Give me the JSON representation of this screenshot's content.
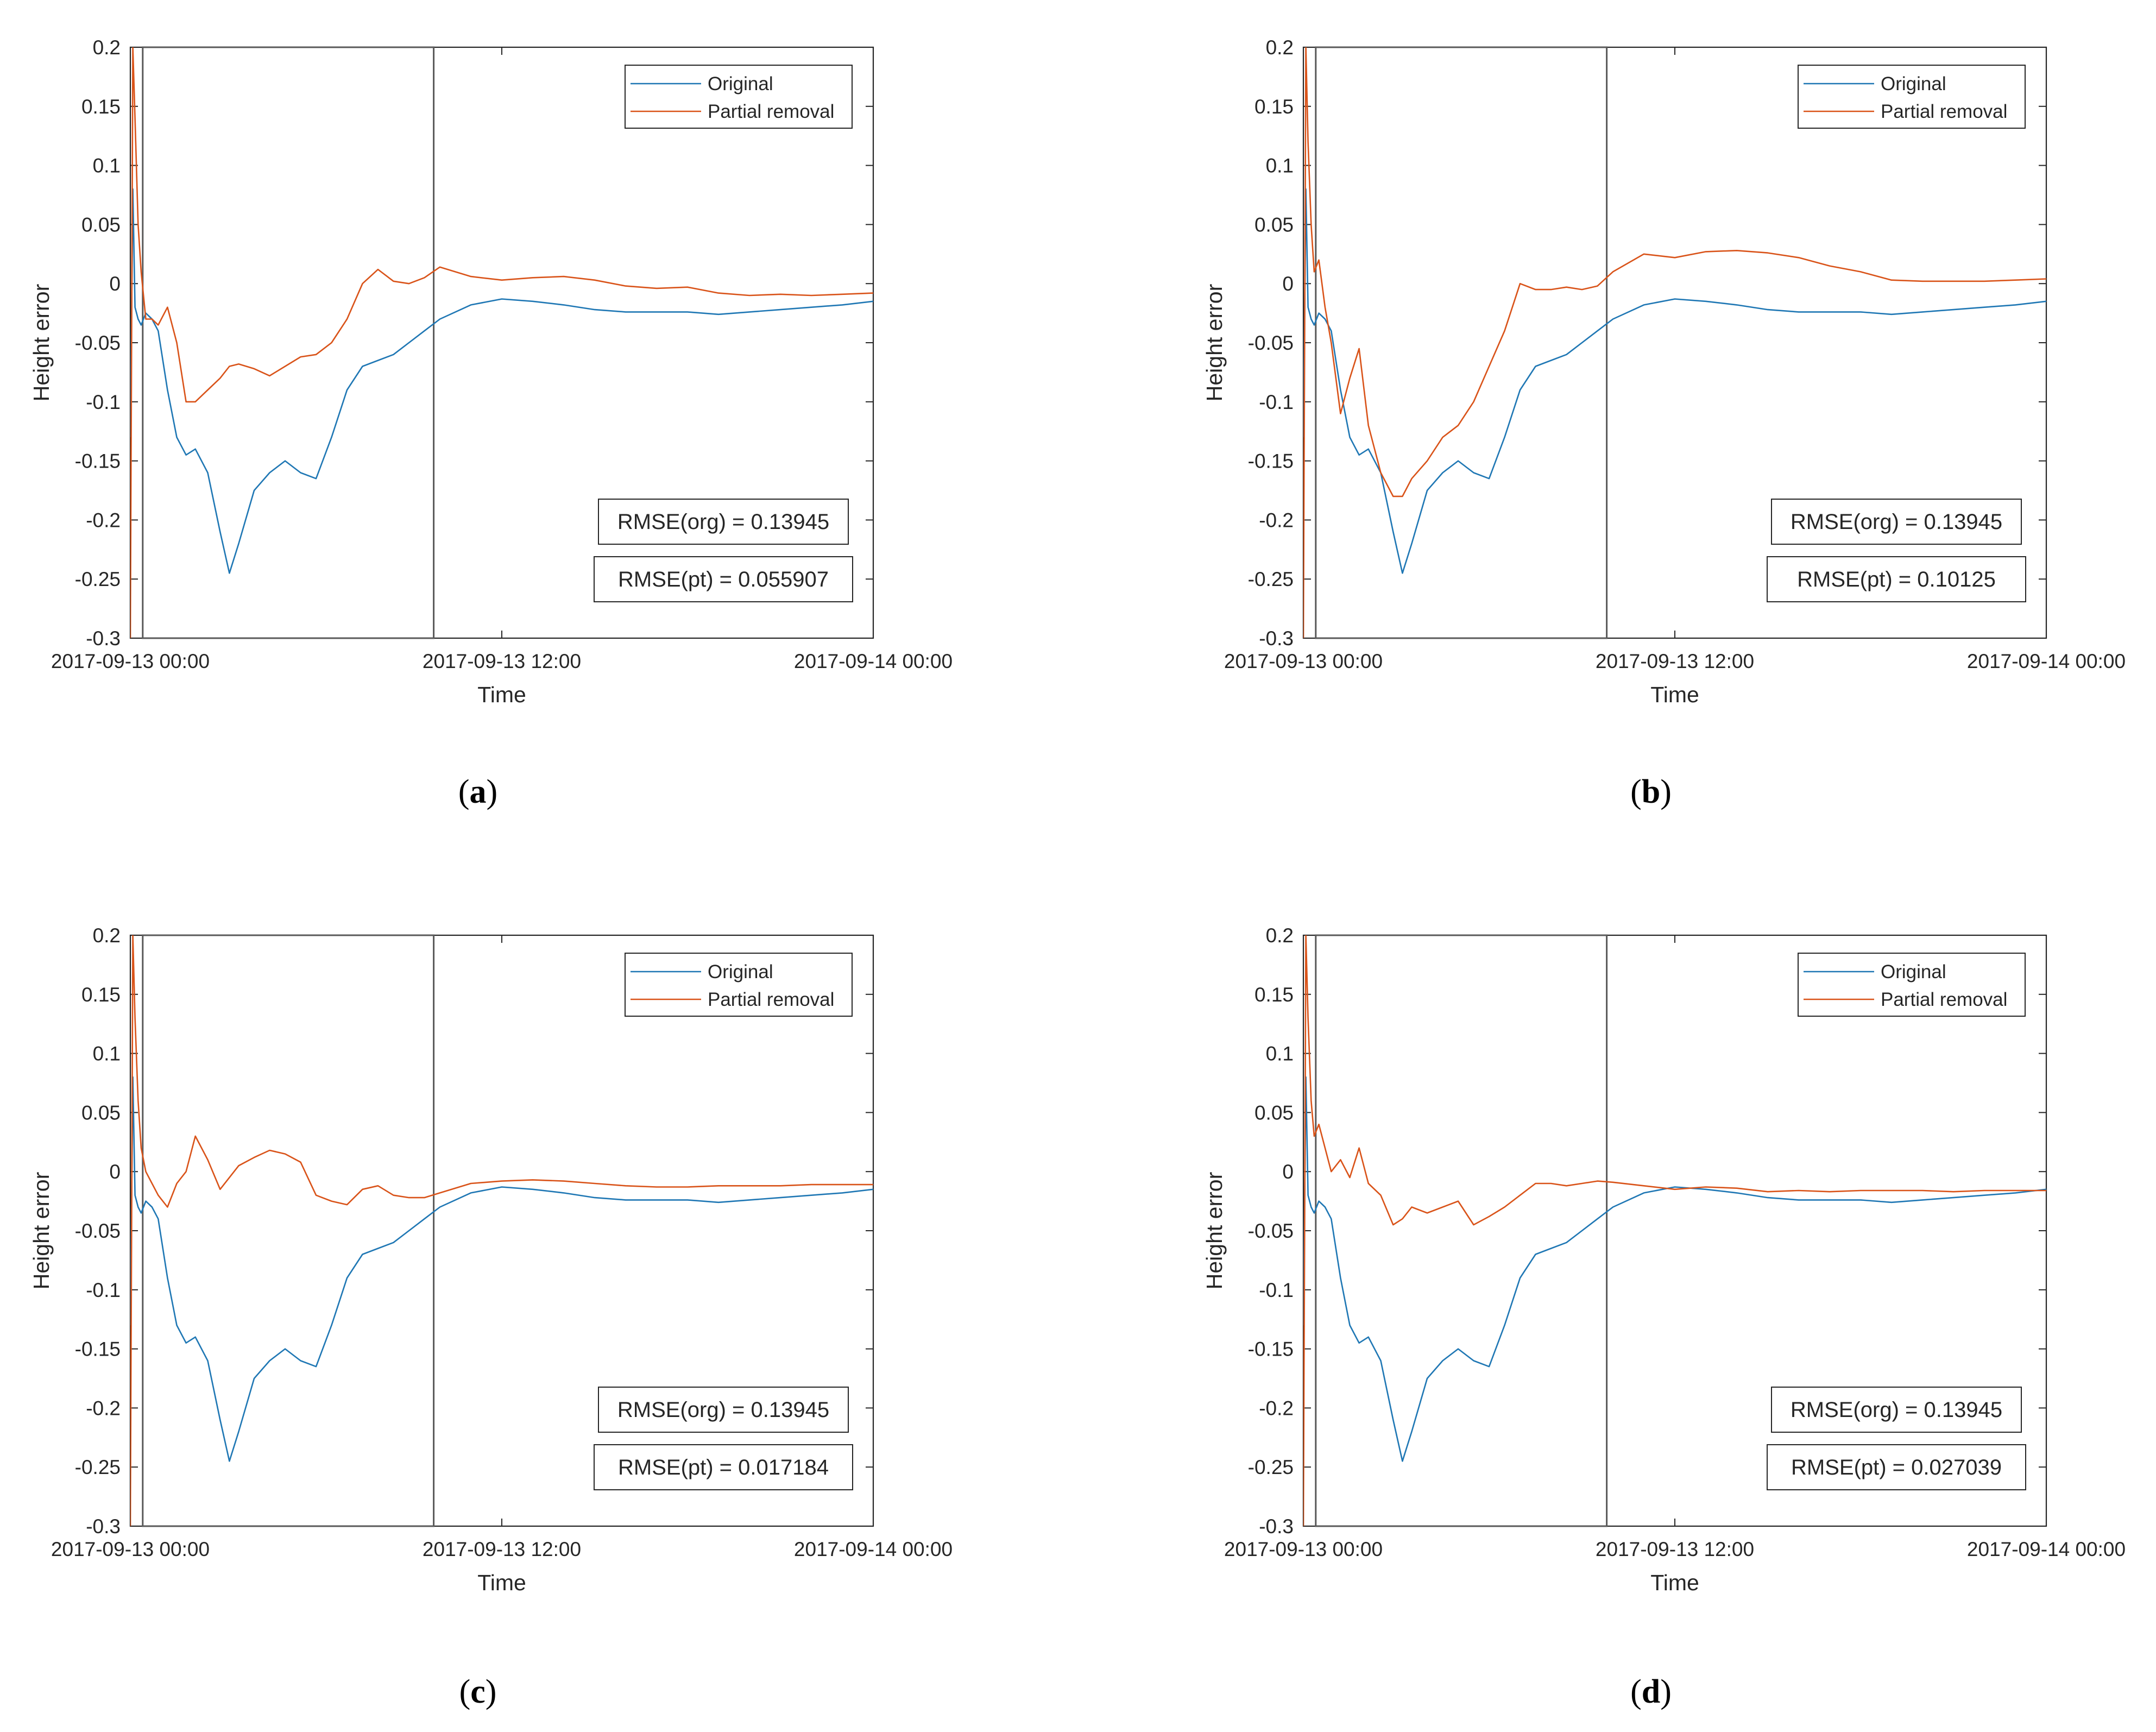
{
  "colors": {
    "original": "#1f77b4",
    "partial": "#d95319",
    "axis": "#262626",
    "box": "#595959"
  },
  "shared": {
    "xlabel": "Time",
    "ylabel": "Height error",
    "yticks": [
      "0.2",
      "0.15",
      "0.1",
      "0.05",
      "0",
      "-0.05",
      "-0.1",
      "-0.15",
      "-0.2",
      "-0.25",
      "-0.3"
    ],
    "xticks": [
      "2017-09-13 00:00",
      "2017-09-13 12:00",
      "2017-09-14 00:00"
    ],
    "legend": [
      "Original",
      "Partial removal"
    ]
  },
  "chart_data": [
    {
      "type": "line",
      "panel": "a",
      "title": "",
      "xlabel": "Time",
      "ylabel": "Height error",
      "xlim": [
        0,
        24
      ],
      "ylim": [
        -0.3,
        0.2
      ],
      "x_ticks": [
        "2017-09-13 00:00",
        "2017-09-13 12:00",
        "2017-09-14 00:00"
      ],
      "highlight_window_hours": [
        0.4,
        9.8
      ],
      "series": [
        {
          "name": "Original",
          "color": "#1f77b4",
          "x": [
            0,
            0.08,
            0.15,
            0.25,
            0.35,
            0.5,
            0.7,
            0.9,
            1.2,
            1.5,
            1.8,
            2.1,
            2.5,
            2.9,
            3.2,
            3.5,
            4.0,
            4.5,
            5.0,
            5.5,
            6.0,
            6.5,
            7.0,
            7.5,
            8.0,
            8.5,
            9.0,
            9.5,
            10.0,
            11.0,
            12.0,
            13.0,
            14.0,
            15.0,
            16.0,
            17.0,
            18.0,
            19.0,
            20.0,
            21.0,
            22.0,
            23.0,
            24.0
          ],
          "y": [
            -0.13,
            0.08,
            -0.02,
            -0.03,
            -0.035,
            -0.025,
            -0.03,
            -0.04,
            -0.09,
            -0.13,
            -0.145,
            -0.14,
            -0.16,
            -0.21,
            -0.245,
            -0.22,
            -0.175,
            -0.16,
            -0.15,
            -0.16,
            -0.165,
            -0.13,
            -0.09,
            -0.07,
            -0.065,
            -0.06,
            -0.05,
            -0.04,
            -0.03,
            -0.018,
            -0.013,
            -0.015,
            -0.018,
            -0.022,
            -0.024,
            -0.024,
            -0.024,
            -0.026,
            -0.024,
            -0.022,
            -0.02,
            -0.018,
            -0.015
          ]
        },
        {
          "name": "Partial removal",
          "color": "#d95319",
          "x": [
            0,
            0.08,
            0.15,
            0.25,
            0.35,
            0.5,
            0.7,
            0.9,
            1.2,
            1.5,
            1.8,
            2.1,
            2.5,
            2.9,
            3.2,
            3.5,
            4.0,
            4.5,
            5.0,
            5.5,
            6.0,
            6.5,
            7.0,
            7.5,
            8.0,
            8.5,
            9.0,
            9.5,
            10.0,
            11.0,
            12.0,
            13.0,
            14.0,
            15.0,
            16.0,
            17.0,
            18.0,
            19.0,
            20.0,
            21.0,
            22.0,
            23.0,
            24.0
          ],
          "y": [
            -0.3,
            0.2,
            0.14,
            0.05,
            0.01,
            -0.03,
            -0.03,
            -0.035,
            -0.02,
            -0.05,
            -0.1,
            -0.1,
            -0.09,
            -0.08,
            -0.07,
            -0.068,
            -0.072,
            -0.078,
            -0.07,
            -0.062,
            -0.06,
            -0.05,
            -0.03,
            0.0,
            0.012,
            0.002,
            0.0,
            0.005,
            0.014,
            0.006,
            0.003,
            0.005,
            0.006,
            0.003,
            -0.002,
            -0.004,
            -0.003,
            -0.008,
            -0.01,
            -0.009,
            -0.01,
            -0.009,
            -0.008
          ]
        }
      ],
      "annotations": [
        "RMSE(org) = 0.13945",
        "RMSE(pt) = 0.055907"
      ]
    },
    {
      "type": "line",
      "panel": "b",
      "title": "",
      "xlabel": "Time",
      "ylabel": "Height error",
      "xlim": [
        0,
        24
      ],
      "ylim": [
        -0.3,
        0.2
      ],
      "x_ticks": [
        "2017-09-13 00:00",
        "2017-09-13 12:00",
        "2017-09-14 00:00"
      ],
      "highlight_window_hours": [
        0.4,
        9.8
      ],
      "series": [
        {
          "name": "Original",
          "color": "#1f77b4",
          "x": [
            0,
            0.08,
            0.15,
            0.25,
            0.35,
            0.5,
            0.7,
            0.9,
            1.2,
            1.5,
            1.8,
            2.1,
            2.5,
            2.9,
            3.2,
            3.5,
            4.0,
            4.5,
            5.0,
            5.5,
            6.0,
            6.5,
            7.0,
            7.5,
            8.0,
            8.5,
            9.0,
            9.5,
            10.0,
            11.0,
            12.0,
            13.0,
            14.0,
            15.0,
            16.0,
            17.0,
            18.0,
            19.0,
            20.0,
            21.0,
            22.0,
            23.0,
            24.0
          ],
          "y": [
            -0.13,
            0.08,
            -0.02,
            -0.03,
            -0.035,
            -0.025,
            -0.03,
            -0.04,
            -0.09,
            -0.13,
            -0.145,
            -0.14,
            -0.16,
            -0.21,
            -0.245,
            -0.22,
            -0.175,
            -0.16,
            -0.15,
            -0.16,
            -0.165,
            -0.13,
            -0.09,
            -0.07,
            -0.065,
            -0.06,
            -0.05,
            -0.04,
            -0.03,
            -0.018,
            -0.013,
            -0.015,
            -0.018,
            -0.022,
            -0.024,
            -0.024,
            -0.024,
            -0.026,
            -0.024,
            -0.022,
            -0.02,
            -0.018,
            -0.015
          ]
        },
        {
          "name": "Partial removal",
          "color": "#d95319",
          "x": [
            0,
            0.08,
            0.15,
            0.25,
            0.35,
            0.5,
            0.7,
            0.9,
            1.2,
            1.5,
            1.8,
            2.1,
            2.5,
            2.9,
            3.2,
            3.5,
            4.0,
            4.5,
            5.0,
            5.5,
            6.0,
            6.5,
            7.0,
            7.5,
            8.0,
            8.5,
            9.0,
            9.5,
            10.0,
            11.0,
            12.0,
            13.0,
            14.0,
            15.0,
            16.0,
            17.0,
            18.0,
            19.0,
            20.0,
            21.0,
            22.0,
            23.0,
            24.0
          ],
          "y": [
            -0.3,
            0.2,
            0.12,
            0.05,
            0.01,
            0.02,
            -0.02,
            -0.05,
            -0.11,
            -0.08,
            -0.055,
            -0.12,
            -0.16,
            -0.18,
            -0.18,
            -0.165,
            -0.15,
            -0.13,
            -0.12,
            -0.1,
            -0.07,
            -0.04,
            0.0,
            -0.005,
            -0.005,
            -0.003,
            -0.005,
            -0.002,
            0.01,
            0.025,
            0.022,
            0.027,
            0.028,
            0.026,
            0.022,
            0.015,
            0.01,
            0.003,
            0.002,
            0.002,
            0.002,
            0.003,
            0.004
          ]
        }
      ],
      "annotations": [
        "RMSE(org) = 0.13945",
        "RMSE(pt) = 0.10125"
      ]
    },
    {
      "type": "line",
      "panel": "c",
      "title": "",
      "xlabel": "Time",
      "ylabel": "Height error",
      "xlim": [
        0,
        24
      ],
      "ylim": [
        -0.3,
        0.2
      ],
      "x_ticks": [
        "2017-09-13 00:00",
        "2017-09-13 12:00",
        "2017-09-14 00:00"
      ],
      "highlight_window_hours": [
        0.4,
        9.8
      ],
      "series": [
        {
          "name": "Original",
          "color": "#1f77b4",
          "x": [
            0,
            0.08,
            0.15,
            0.25,
            0.35,
            0.5,
            0.7,
            0.9,
            1.2,
            1.5,
            1.8,
            2.1,
            2.5,
            2.9,
            3.2,
            3.5,
            4.0,
            4.5,
            5.0,
            5.5,
            6.0,
            6.5,
            7.0,
            7.5,
            8.0,
            8.5,
            9.0,
            9.5,
            10.0,
            11.0,
            12.0,
            13.0,
            14.0,
            15.0,
            16.0,
            17.0,
            18.0,
            19.0,
            20.0,
            21.0,
            22.0,
            23.0,
            24.0
          ],
          "y": [
            -0.13,
            0.08,
            -0.02,
            -0.03,
            -0.035,
            -0.025,
            -0.03,
            -0.04,
            -0.09,
            -0.13,
            -0.145,
            -0.14,
            -0.16,
            -0.21,
            -0.245,
            -0.22,
            -0.175,
            -0.16,
            -0.15,
            -0.16,
            -0.165,
            -0.13,
            -0.09,
            -0.07,
            -0.065,
            -0.06,
            -0.05,
            -0.04,
            -0.03,
            -0.018,
            -0.013,
            -0.015,
            -0.018,
            -0.022,
            -0.024,
            -0.024,
            -0.024,
            -0.026,
            -0.024,
            -0.022,
            -0.02,
            -0.018,
            -0.015
          ]
        },
        {
          "name": "Partial removal",
          "color": "#d95319",
          "x": [
            0,
            0.08,
            0.15,
            0.25,
            0.35,
            0.5,
            0.7,
            0.9,
            1.2,
            1.5,
            1.8,
            2.1,
            2.5,
            2.9,
            3.2,
            3.5,
            4.0,
            4.5,
            5.0,
            5.5,
            6.0,
            6.5,
            7.0,
            7.5,
            8.0,
            8.5,
            9.0,
            9.5,
            10.0,
            11.0,
            12.0,
            13.0,
            14.0,
            15.0,
            16.0,
            17.0,
            18.0,
            19.0,
            20.0,
            21.0,
            22.0,
            23.0,
            24.0
          ],
          "y": [
            -0.3,
            0.2,
            0.13,
            0.06,
            0.02,
            0.0,
            -0.01,
            -0.02,
            -0.03,
            -0.01,
            0.0,
            0.03,
            0.01,
            -0.015,
            -0.005,
            0.005,
            0.012,
            0.018,
            0.015,
            0.008,
            -0.02,
            -0.025,
            -0.028,
            -0.015,
            -0.012,
            -0.02,
            -0.022,
            -0.022,
            -0.018,
            -0.01,
            -0.008,
            -0.007,
            -0.008,
            -0.01,
            -0.012,
            -0.013,
            -0.013,
            -0.012,
            -0.012,
            -0.012,
            -0.011,
            -0.011,
            -0.011
          ]
        }
      ],
      "annotations": [
        "RMSE(org) = 0.13945",
        "RMSE(pt) = 0.017184"
      ]
    },
    {
      "type": "line",
      "panel": "d",
      "title": "",
      "xlabel": "Time",
      "ylabel": "Height error",
      "xlim": [
        0,
        24
      ],
      "ylim": [
        -0.3,
        0.2
      ],
      "x_ticks": [
        "2017-09-13 00:00",
        "2017-09-13 12:00",
        "2017-09-14 00:00"
      ],
      "highlight_window_hours": [
        0.4,
        9.8
      ],
      "series": [
        {
          "name": "Original",
          "color": "#1f77b4",
          "x": [
            0,
            0.08,
            0.15,
            0.25,
            0.35,
            0.5,
            0.7,
            0.9,
            1.2,
            1.5,
            1.8,
            2.1,
            2.5,
            2.9,
            3.2,
            3.5,
            4.0,
            4.5,
            5.0,
            5.5,
            6.0,
            6.5,
            7.0,
            7.5,
            8.0,
            8.5,
            9.0,
            9.5,
            10.0,
            11.0,
            12.0,
            13.0,
            14.0,
            15.0,
            16.0,
            17.0,
            18.0,
            19.0,
            20.0,
            21.0,
            22.0,
            23.0,
            24.0
          ],
          "y": [
            -0.13,
            0.08,
            -0.02,
            -0.03,
            -0.035,
            -0.025,
            -0.03,
            -0.04,
            -0.09,
            -0.13,
            -0.145,
            -0.14,
            -0.16,
            -0.21,
            -0.245,
            -0.22,
            -0.175,
            -0.16,
            -0.15,
            -0.16,
            -0.165,
            -0.13,
            -0.09,
            -0.07,
            -0.065,
            -0.06,
            -0.05,
            -0.04,
            -0.03,
            -0.018,
            -0.013,
            -0.015,
            -0.018,
            -0.022,
            -0.024,
            -0.024,
            -0.024,
            -0.026,
            -0.024,
            -0.022,
            -0.02,
            -0.018,
            -0.015
          ]
        },
        {
          "name": "Partial removal",
          "color": "#d95319",
          "x": [
            0,
            0.08,
            0.15,
            0.25,
            0.35,
            0.5,
            0.7,
            0.9,
            1.2,
            1.5,
            1.8,
            2.1,
            2.5,
            2.9,
            3.2,
            3.5,
            4.0,
            4.5,
            5.0,
            5.5,
            6.0,
            6.5,
            7.0,
            7.5,
            8.0,
            8.5,
            9.0,
            9.5,
            10.0,
            11.0,
            12.0,
            13.0,
            14.0,
            15.0,
            16.0,
            17.0,
            18.0,
            19.0,
            20.0,
            21.0,
            22.0,
            23.0,
            24.0
          ],
          "y": [
            -0.3,
            0.2,
            0.13,
            0.06,
            0.03,
            0.04,
            0.02,
            0.0,
            0.01,
            -0.005,
            0.02,
            -0.01,
            -0.02,
            -0.045,
            -0.04,
            -0.03,
            -0.035,
            -0.03,
            -0.025,
            -0.045,
            -0.038,
            -0.03,
            -0.02,
            -0.01,
            -0.01,
            -0.012,
            -0.01,
            -0.008,
            -0.009,
            -0.012,
            -0.015,
            -0.013,
            -0.014,
            -0.017,
            -0.016,
            -0.017,
            -0.016,
            -0.016,
            -0.016,
            -0.017,
            -0.016,
            -0.016,
            -0.016
          ]
        }
      ],
      "annotations": [
        "RMSE(org) = 0.13945",
        "RMSE(pt) = 0.027039"
      ]
    }
  ],
  "panels": [
    {
      "label": "a",
      "prefix": "(",
      "suffix": ")",
      "rmse_org": "RMSE(org) = 0.13945",
      "rmse_pt": "RMSE(pt) = 0.055907"
    },
    {
      "label": "b",
      "prefix": "(",
      "suffix": ")",
      "rmse_org": "RMSE(org) = 0.13945",
      "rmse_pt": "RMSE(pt) = 0.10125"
    },
    {
      "label": "c",
      "prefix": "(",
      "suffix": ")",
      "rmse_org": "RMSE(org) = 0.13945",
      "rmse_pt": "RMSE(pt) = 0.017184"
    },
    {
      "label": "d",
      "prefix": "(",
      "suffix": ")",
      "rmse_org": "RMSE(org) = 0.13945",
      "rmse_pt": "RMSE(pt) = 0.027039"
    }
  ]
}
